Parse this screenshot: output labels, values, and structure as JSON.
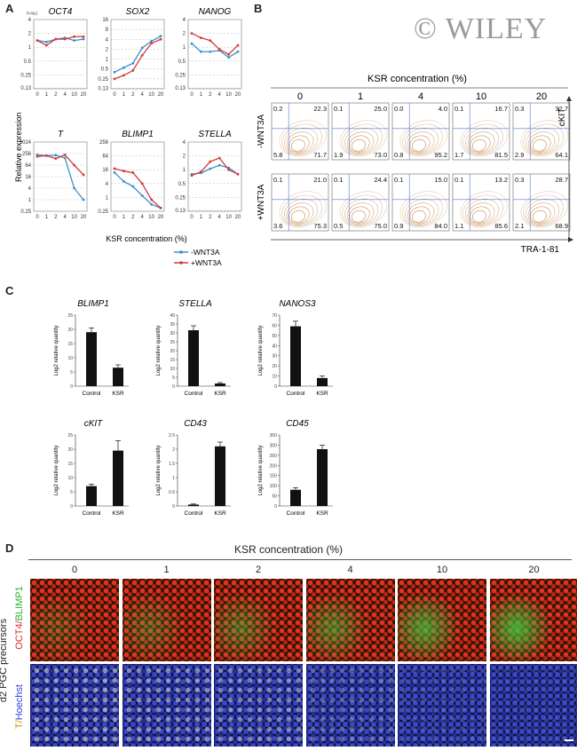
{
  "watermark": "© WILEY",
  "colors": {
    "minus_wnt3a": "#3d8fcb",
    "plus_wnt3a": "#cf3b3b",
    "bar": "#111111",
    "flow_contour": "#b8732a",
    "flow_gate": "#5577dd"
  },
  "panel_A": {
    "label": "A",
    "x_title": "KSR concentration (%)",
    "y_title": "Relative expression",
    "log2_tag": "(Log₂)",
    "x_ticks": [
      "0",
      "1",
      "2",
      "4",
      "10",
      "20"
    ],
    "legend": [
      "-WNT3A",
      "+WNT3A"
    ]
  },
  "panel_B": {
    "label": "B",
    "title": "KSR concentration (%)",
    "columns": [
      "0",
      "1",
      "4",
      "10",
      "20"
    ],
    "rows": [
      "-WNT3A",
      "+WNT3A"
    ],
    "y_axis": "cKIT",
    "x_axis": "TRA-1-81",
    "quadrants": [
      [
        [
          "0.2",
          "22.3",
          "5.8",
          "71.7"
        ],
        [
          "0.1",
          "25.0",
          "1.9",
          "73.0"
        ],
        [
          "0.0",
          "4.0",
          "0.8",
          "95.2"
        ],
        [
          "0.1",
          "16.7",
          "1.7",
          "81.5"
        ],
        [
          "0.3",
          "32.7",
          "2.9",
          "64.1"
        ]
      ],
      [
        [
          "0.1",
          "21.0",
          "3.6",
          "75.3"
        ],
        [
          "0.1",
          "24.4",
          "0.5",
          "75.0"
        ],
        [
          "0.1",
          "15.0",
          "0.9",
          "84.0"
        ],
        [
          "0.1",
          "13.2",
          "1.1",
          "85.6"
        ],
        [
          "0.3",
          "28.7",
          "2.1",
          "68.9"
        ]
      ]
    ]
  },
  "panel_C": {
    "label": "C",
    "y_title": "Log2 relative quantity"
  },
  "panel_D": {
    "label": "D",
    "title": "KSR concentration (%)",
    "columns": [
      "0",
      "1",
      "2",
      "4",
      "10",
      "20"
    ],
    "side_label": "d2 PGC precursors",
    "row1_label_a": "OCT4/",
    "row1_label_b": "BLIMP1",
    "row2_label_a": "T/",
    "row2_label_b": "Hoechst"
  },
  "chart_data": [
    {
      "type": "line",
      "title": "OCT4",
      "x": [
        "0",
        "1",
        "2",
        "4",
        "10",
        "20"
      ],
      "yscale": "log2",
      "yticks": [
        "0.13",
        "0.25",
        "0.5",
        "1",
        "2",
        "4"
      ],
      "ylim": [
        0.125,
        4
      ],
      "series": [
        {
          "name": "-WNT3A",
          "values": [
            1.4,
            1.3,
            1.5,
            1.6,
            1.4,
            1.5
          ]
        },
        {
          "name": "+WNT3A",
          "values": [
            1.4,
            1.1,
            1.5,
            1.5,
            1.7,
            1.7
          ]
        }
      ]
    },
    {
      "type": "line",
      "title": "SOX2",
      "x": [
        "0",
        "1",
        "2",
        "4",
        "10",
        "20"
      ],
      "yscale": "log2",
      "yticks": [
        "0.13",
        "0.25",
        "0.5",
        "1",
        "2",
        "4",
        "8",
        "16"
      ],
      "ylim": [
        0.125,
        16
      ],
      "series": [
        {
          "name": "-WNT3A",
          "values": [
            0.4,
            0.55,
            0.75,
            2.2,
            3.5,
            5.0
          ]
        },
        {
          "name": "+WNT3A",
          "values": [
            0.25,
            0.32,
            0.45,
            1.3,
            3.0,
            4.0
          ]
        }
      ]
    },
    {
      "type": "line",
      "title": "NANOG",
      "x": [
        "0",
        "1",
        "2",
        "4",
        "10",
        "20"
      ],
      "yscale": "log2",
      "yticks": [
        "0.13",
        "0.25",
        "0.5",
        "1",
        "2",
        "4"
      ],
      "ylim": [
        0.125,
        4
      ],
      "series": [
        {
          "name": "-WNT3A",
          "values": [
            1.2,
            0.8,
            0.8,
            0.85,
            0.6,
            0.8
          ]
        },
        {
          "name": "+WNT3A",
          "values": [
            2.0,
            1.6,
            1.4,
            0.9,
            0.7,
            1.1
          ]
        }
      ]
    },
    {
      "type": "line",
      "title": "T",
      "x": [
        "0",
        "1",
        "2",
        "4",
        "10",
        "20"
      ],
      "yscale": "log2",
      "yticks": [
        "0.25",
        "1",
        "4",
        "16",
        "64",
        "256",
        "1024"
      ],
      "ylim": [
        0.25,
        1024
      ],
      "series": [
        {
          "name": "-WNT3A",
          "values": [
            220,
            200,
            210,
            150,
            4,
            1
          ]
        },
        {
          "name": "+WNT3A",
          "values": [
            180,
            200,
            140,
            220,
            64,
            20
          ]
        }
      ]
    },
    {
      "type": "line",
      "title": "BLIMP1",
      "x": [
        "0",
        "1",
        "2",
        "4",
        "10",
        "20"
      ],
      "yscale": "log2",
      "yticks": [
        "0.25",
        "1",
        "4",
        "16",
        "64",
        "256"
      ],
      "ylim": [
        0.25,
        256
      ],
      "series": [
        {
          "name": "-WNT3A",
          "values": [
            12,
            5,
            3,
            1.2,
            0.5,
            0.35
          ]
        },
        {
          "name": "+WNT3A",
          "values": [
            18,
            14,
            12,
            4,
            0.8,
            0.35
          ]
        }
      ]
    },
    {
      "type": "line",
      "title": "STELLA",
      "x": [
        "0",
        "1",
        "2",
        "4",
        "10",
        "20"
      ],
      "yscale": "log2",
      "yticks": [
        "0.13",
        "0.25",
        "0.5",
        "1",
        "2",
        "4"
      ],
      "ylim": [
        0.125,
        4
      ],
      "series": [
        {
          "name": "-WNT3A",
          "values": [
            0.8,
            0.85,
            1.05,
            1.25,
            1.1,
            0.8
          ]
        },
        {
          "name": "+WNT3A",
          "values": [
            0.75,
            0.9,
            1.5,
            1.8,
            1.0,
            0.8
          ]
        }
      ]
    },
    {
      "type": "bar",
      "title": "BLIMP1",
      "categories": [
        "Control",
        "KSR"
      ],
      "values": [
        19,
        6.5
      ],
      "errors": [
        1.5,
        1.0
      ],
      "ylabel": "Log2 relative quantity",
      "ylim": [
        0,
        25
      ],
      "yticks": [
        "0",
        "5",
        "10",
        "15",
        "20",
        "25"
      ]
    },
    {
      "type": "bar",
      "title": "STELLA",
      "categories": [
        "Control",
        "KSR"
      ],
      "values": [
        31.5,
        1.5
      ],
      "errors": [
        2.5,
        0.5
      ],
      "ylabel": "Log2 relative quantity",
      "ylim": [
        0,
        40
      ],
      "yticks": [
        "0",
        "5",
        "10",
        "15",
        "20",
        "25",
        "30",
        "35",
        "40"
      ]
    },
    {
      "type": "bar",
      "title": "NANOS3",
      "categories": [
        "Control",
        "KSR"
      ],
      "values": [
        59,
        8
      ],
      "errors": [
        5,
        2
      ],
      "ylabel": "Log2 relative quantity",
      "ylim": [
        0,
        70
      ],
      "yticks": [
        "0",
        "10",
        "20",
        "30",
        "40",
        "50",
        "60",
        "70"
      ]
    },
    {
      "type": "bar",
      "title": "cKIT",
      "categories": [
        "Control",
        "KSR"
      ],
      "values": [
        7,
        19.5
      ],
      "errors": [
        0.7,
        3.5
      ],
      "ylabel": "Log2 relative quantity",
      "ylim": [
        0,
        25
      ],
      "yticks": [
        "0",
        "5",
        "10",
        "15",
        "20",
        "25"
      ]
    },
    {
      "type": "bar",
      "title": "CD43",
      "categories": [
        "Control",
        "KSR"
      ],
      "values": [
        0.05,
        2.1
      ],
      "errors": [
        0.02,
        0.15
      ],
      "ylabel": "Log2 relative quantity",
      "ylim": [
        0,
        2.5
      ],
      "yticks": [
        "0",
        "0.5",
        "1",
        "1.5",
        "2",
        "2.5"
      ]
    },
    {
      "type": "bar",
      "title": "CD45",
      "categories": [
        "Control",
        "KSR"
      ],
      "values": [
        80,
        280
      ],
      "errors": [
        10,
        20
      ],
      "ylabel": "Log2 relative quantity",
      "ylim": [
        0,
        350
      ],
      "yticks": [
        "0",
        "50",
        "100",
        "150",
        "200",
        "250",
        "300",
        "350"
      ]
    }
  ]
}
